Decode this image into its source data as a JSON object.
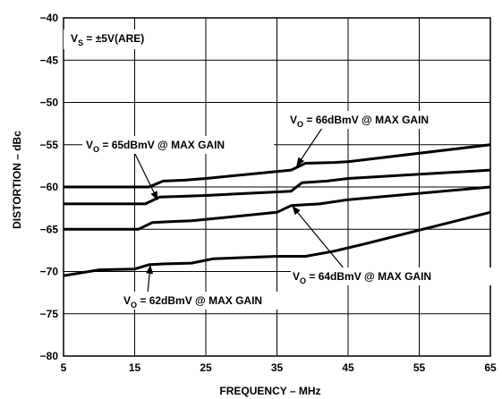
{
  "chart_data": {
    "type": "line",
    "x_ticks": [
      5,
      15,
      25,
      35,
      45,
      55,
      65
    ],
    "y_ticks": [
      -40,
      -45,
      -50,
      -55,
      -60,
      -65,
      -70,
      -75,
      -80
    ],
    "xlim": [
      5,
      65
    ],
    "ylim": [
      -80,
      -40
    ],
    "xlabel": "FREQUENCY – MHz",
    "ylabel": "DISTORTION – dBc",
    "grid": true,
    "condition": {
      "prefix": "V",
      "sub": "S",
      "text": " = ±5V(ARE)"
    },
    "series": [
      {
        "x": [
          5,
          17,
          19,
          22,
          25,
          37,
          39,
          43,
          45,
          65
        ],
        "y": [
          -60,
          -60,
          -59.3,
          -59.2,
          -59,
          -58,
          -57.2,
          -57.1,
          -57,
          -55
        ]
      },
      {
        "x": [
          5,
          16.5,
          18.5,
          22,
          25,
          37,
          38.5,
          42,
          45,
          65
        ],
        "y": [
          -62,
          -62,
          -61.2,
          -61.1,
          -61,
          -60.5,
          -59.5,
          -59.3,
          -59,
          -58
        ]
      },
      {
        "x": [
          5,
          15.5,
          17.5,
          20,
          23,
          35,
          37,
          41,
          45,
          65
        ],
        "y": [
          -65,
          -65,
          -64.2,
          -64.1,
          -64,
          -63,
          -62.2,
          -62,
          -61.5,
          -60
        ]
      },
      {
        "x": [
          5,
          10,
          15,
          17,
          19,
          23,
          26,
          35,
          39,
          43,
          47,
          65
        ],
        "y": [
          -70.5,
          -69.8,
          -69.7,
          -69.2,
          -69.1,
          -69,
          -68.5,
          -68.2,
          -68.2,
          -67.6,
          -66.8,
          -63
        ]
      }
    ],
    "annotations": [
      {
        "prefix": "V",
        "sub": "O",
        "text": " = 66dBmV @ MAX GAIN"
      },
      {
        "prefix": "V",
        "sub": "O",
        "text": " = 65dBmV @ MAX GAIN"
      },
      {
        "prefix": "V",
        "sub": "O",
        "text": " = 64dBmV @ MAX GAIN"
      },
      {
        "prefix": "V",
        "sub": "O",
        "text": " = 62dBmV @ MAX GAIN"
      }
    ]
  }
}
